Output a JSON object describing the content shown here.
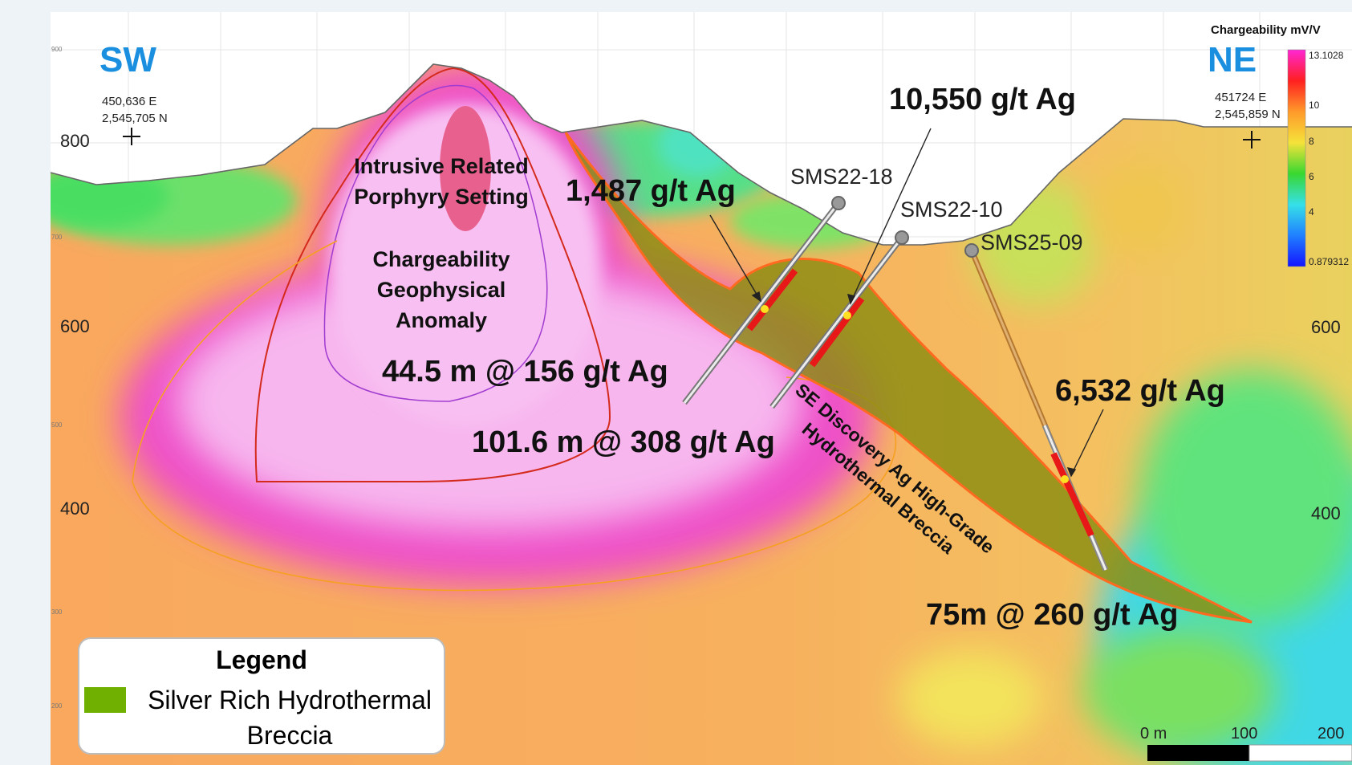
{
  "directions": {
    "left": "SW",
    "right": "NE"
  },
  "coords": {
    "left_easting": "450,636 E",
    "left_northing": "2,545,705 N",
    "right_easting": "451724 E",
    "right_northing": "2,545,859 N"
  },
  "elevations": {
    "e800": "800",
    "e600_left": "600",
    "e400_left": "400",
    "e600_right": "600",
    "e400_right": "400"
  },
  "small_elevations": {
    "e900": "900",
    "e700": "700",
    "e500": "500",
    "e300": "300",
    "e200": "200"
  },
  "drillholes": [
    "SMS22-18",
    "SMS22-10",
    "SMS25-09"
  ],
  "grades": {
    "g1487": "1,487 g/t Ag",
    "g10550": "10,550 g/t Ag",
    "g6532": "6,532 g/t Ag",
    "int1": "44.5 m @ 156 g/t Ag",
    "int2": "101.6 m @ 308 g/t Ag",
    "int3": "75m @ 260 g/t Ag"
  },
  "labels": {
    "porphyry": [
      "Intrusive Related",
      "Porphyry Setting"
    ],
    "anomaly": [
      "Chargeability",
      "Geophysical",
      "Anomaly"
    ],
    "breccia": [
      "SE Discovery Ag High-Grade",
      "Hydrothermal Breccia"
    ]
  },
  "legend": {
    "title": "Legend",
    "item": "Silver Rich Hydrothermal Breccia",
    "item_color": "#6fb000"
  },
  "colorbar": {
    "title": "Chargeability mV/V",
    "max": "13.1028",
    "min": "0.879312",
    "ticks": [
      "10",
      "8",
      "6",
      "4"
    ],
    "colors": [
      "#ff26d4",
      "#ff2020",
      "#ff9a2a",
      "#f5e23a",
      "#38d830",
      "#36e0e8",
      "#2080ff",
      "#1414ff"
    ]
  },
  "scale_bar": {
    "labels": [
      "0 m",
      "100",
      "200"
    ]
  }
}
